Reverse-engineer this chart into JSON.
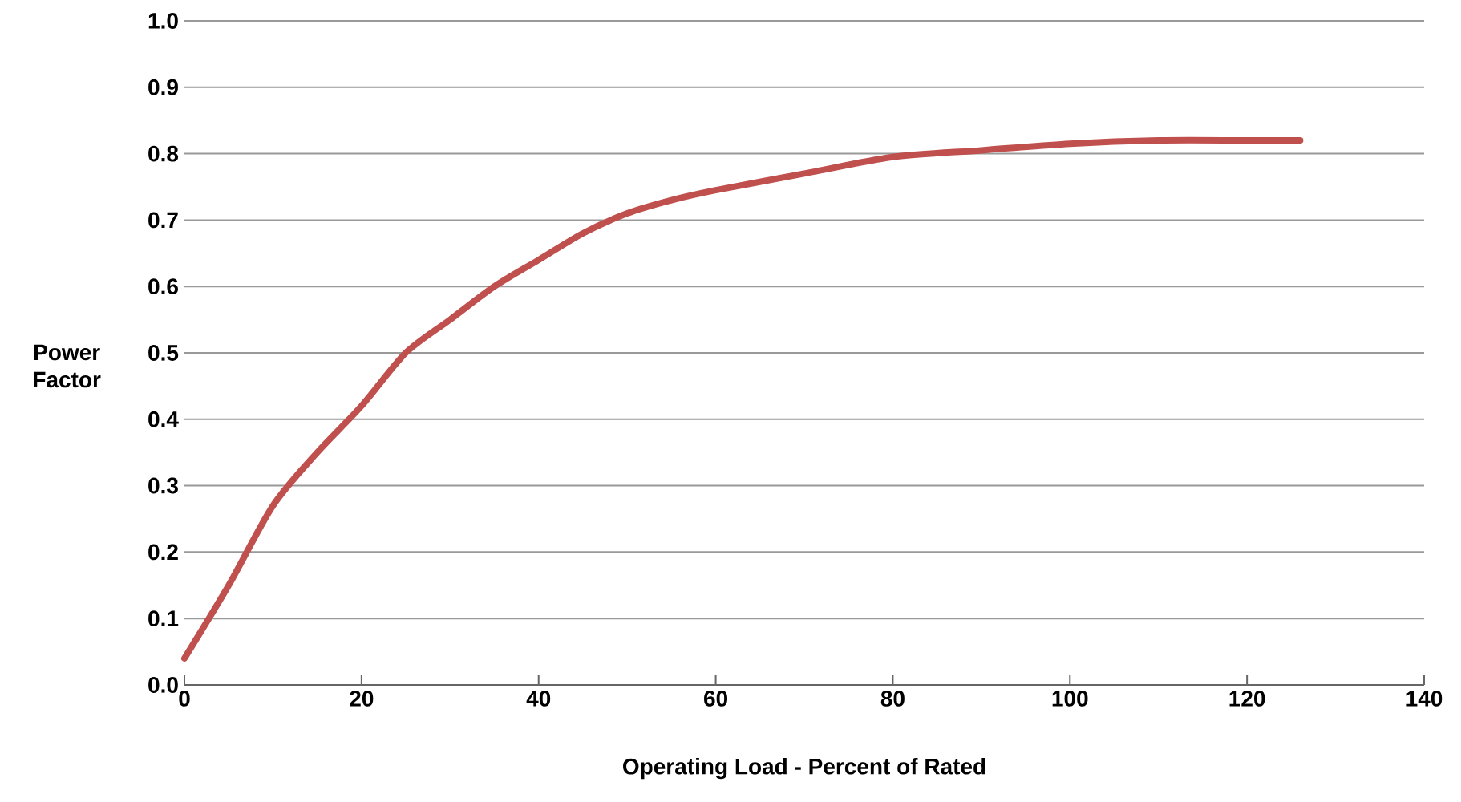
{
  "chart_data": {
    "type": "line",
    "xlabel": "Operating Load - Percent of Rated",
    "ylabel": "Power Factor",
    "xlim": [
      0,
      140
    ],
    "ylim": [
      0,
      1
    ],
    "xticks": [
      0,
      20,
      40,
      60,
      80,
      100,
      120,
      140
    ],
    "yticks": [
      {
        "value": 0,
        "label": "0.0"
      },
      0.1,
      0.2,
      0.3,
      0.4,
      0.5,
      0.6,
      0.7,
      0.8,
      0.9,
      {
        "value": 1,
        "label": "1.0"
      }
    ],
    "grid": "y",
    "marker": "none",
    "line_style": "solid",
    "series": [
      {
        "color": "#c0504d",
        "x": [
          0,
          5,
          10,
          15,
          20,
          25,
          30,
          35,
          40,
          45,
          50,
          55,
          60,
          70,
          80,
          90,
          100,
          110,
          120,
          126
        ],
        "values": [
          0.04,
          0.15,
          0.27,
          0.35,
          0.42,
          0.5,
          0.55,
          0.6,
          0.64,
          0.68,
          0.71,
          0.73,
          0.745,
          0.77,
          0.795,
          0.805,
          0.815,
          0.82,
          0.82,
          0.82
        ]
      }
    ]
  }
}
